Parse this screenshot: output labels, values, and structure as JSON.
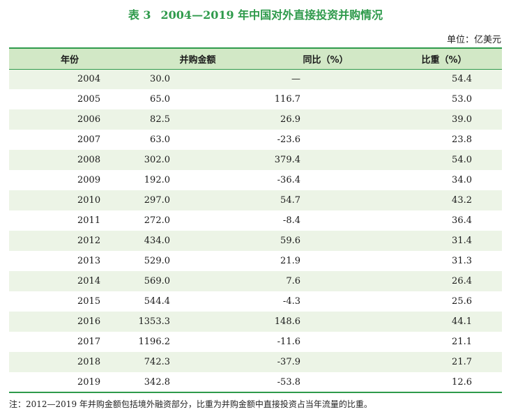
{
  "title": {
    "label": "表 3",
    "text": "2004—2019 年中国对外直接投资并购情况"
  },
  "unit": "单位：亿美元",
  "table": {
    "headers": [
      "年份",
      "并购金额",
      "同比（%）",
      "比重（%）"
    ],
    "rows": [
      [
        "2004",
        "30.0",
        "—",
        "54.4"
      ],
      [
        "2005",
        "65.0",
        "116.7",
        "53.0"
      ],
      [
        "2006",
        "82.5",
        "26.9",
        "39.0"
      ],
      [
        "2007",
        "63.0",
        "-23.6",
        "23.8"
      ],
      [
        "2008",
        "302.0",
        "379.4",
        "54.0"
      ],
      [
        "2009",
        "192.0",
        "-36.4",
        "34.0"
      ],
      [
        "2010",
        "297.0",
        "54.7",
        "43.2"
      ],
      [
        "2011",
        "272.0",
        "-8.4",
        "36.4"
      ],
      [
        "2012",
        "434.0",
        "59.6",
        "31.4"
      ],
      [
        "2013",
        "529.0",
        "21.9",
        "31.3"
      ],
      [
        "2014",
        "569.0",
        "7.6",
        "26.4"
      ],
      [
        "2015",
        "544.4",
        "-4.3",
        "25.6"
      ],
      [
        "2016",
        "1353.3",
        "148.6",
        "44.1"
      ],
      [
        "2017",
        "1196.2",
        "-11.6",
        "21.1"
      ],
      [
        "2018",
        "742.3",
        "-37.9",
        "21.7"
      ],
      [
        "2019",
        "342.8",
        "-53.8",
        "12.6"
      ]
    ]
  },
  "note": "注：2012—2019 年并购金额包括境外融资部分，比重为并购金额中直接投资占当年流量的比重。",
  "colors": {
    "accent_green": "#2e9a4b",
    "header_bg": "#d2e8c6",
    "stripe_bg": "#ecf4e6"
  }
}
